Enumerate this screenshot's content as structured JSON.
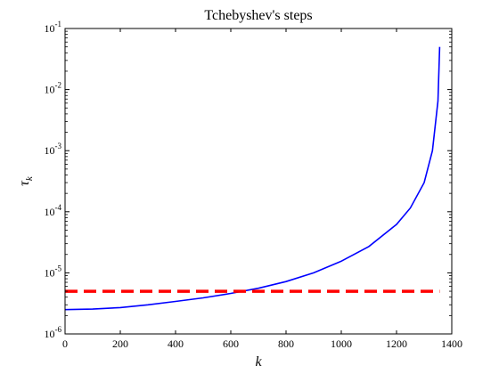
{
  "chart_data": {
    "type": "line",
    "title": "Tchebyshev's steps",
    "xlabel": "k",
    "ylabel_symbol": "τ",
    "ylabel_subscript": "k",
    "xlim": [
      0,
      1400
    ],
    "ylim": [
      1e-06,
      0.1
    ],
    "yscale": "log",
    "grid": false,
    "xticks": [
      0,
      200,
      400,
      600,
      800,
      1000,
      1200,
      1400
    ],
    "yticks": [
      {
        "value": 1e-06,
        "base": "10",
        "exp": "-6"
      },
      {
        "value": 1e-05,
        "base": "10",
        "exp": "-5"
      },
      {
        "value": 0.0001,
        "base": "10",
        "exp": "-4"
      },
      {
        "value": 0.001,
        "base": "10",
        "exp": "-3"
      },
      {
        "value": 0.01,
        "base": "10",
        "exp": "-2"
      },
      {
        "value": 0.1,
        "base": "10",
        "exp": "-1"
      }
    ],
    "series": [
      {
        "style": "solid",
        "color": "#0000ff",
        "x": [
          0,
          100,
          200,
          300,
          400,
          500,
          600,
          700,
          800,
          900,
          1000,
          1100,
          1200,
          1250,
          1300,
          1330,
          1350,
          1356
        ],
        "y": [
          2.5e-06,
          2.55e-06,
          2.7e-06,
          3e-06,
          3.4e-06,
          3.9e-06,
          4.6e-06,
          5.6e-06,
          7.2e-06,
          1e-05,
          1.55e-05,
          2.7e-05,
          6.2e-05,
          0.000115,
          0.0003,
          0.001,
          0.0065,
          0.05
        ]
      },
      {
        "style": "dashed",
        "color": "#ff0000",
        "x": [
          0,
          1356
        ],
        "y": [
          5e-06,
          5e-06
        ]
      }
    ]
  }
}
